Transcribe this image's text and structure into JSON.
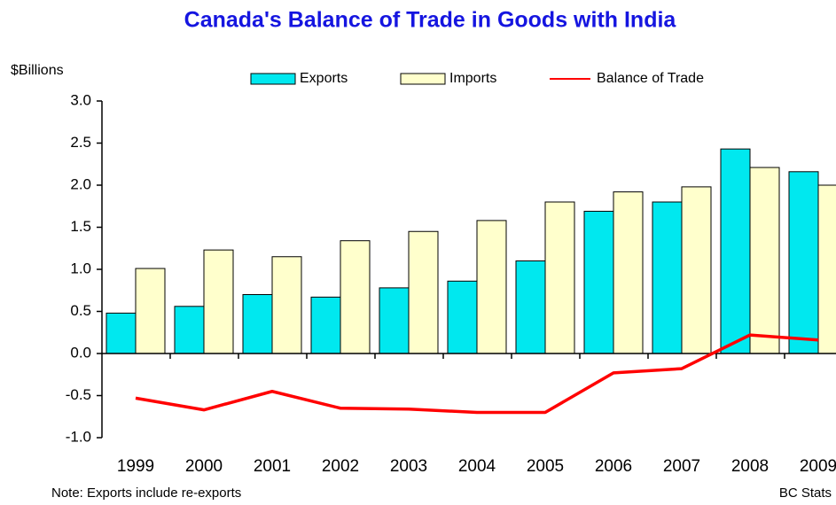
{
  "chart_data": {
    "type": "bar_line",
    "title": "Canada's Balance of Trade in Goods with India",
    "y_label": "$Billions",
    "note": "Note: Exports include re-exports",
    "source": "BC Stats",
    "categories": [
      "1999",
      "2000",
      "2001",
      "2002",
      "2003",
      "2004",
      "2005",
      "2006",
      "2007",
      "2008",
      "2009"
    ],
    "series": [
      {
        "name": "Exports",
        "type": "bar",
        "color": "#00e8ef",
        "values": [
          0.48,
          0.56,
          0.7,
          0.67,
          0.78,
          0.86,
          1.1,
          1.69,
          1.8,
          2.43,
          2.16
        ]
      },
      {
        "name": "Imports",
        "type": "bar",
        "color": "#ffffcc",
        "values": [
          1.01,
          1.23,
          1.15,
          1.34,
          1.45,
          1.58,
          1.8,
          1.92,
          1.98,
          2.21,
          2.0
        ]
      },
      {
        "name": "Balance of Trade",
        "type": "line",
        "color": "#ff0000",
        "values": [
          -0.53,
          -0.67,
          -0.45,
          -0.65,
          -0.66,
          -0.7,
          -0.7,
          -0.23,
          -0.18,
          0.22,
          0.16
        ]
      }
    ],
    "ylim": [
      -1.0,
      3.0
    ],
    "yticks": [
      {
        "value": -1.0,
        "label": "-1.0"
      },
      -0.5,
      {
        "value": 0,
        "label": "0.0"
      },
      0.5,
      {
        "value": 1.0,
        "label": "1.0"
      },
      1.5,
      {
        "value": 2.0,
        "label": "2.0"
      },
      2.5,
      {
        "value": 3.0,
        "label": "3.0"
      }
    ]
  }
}
